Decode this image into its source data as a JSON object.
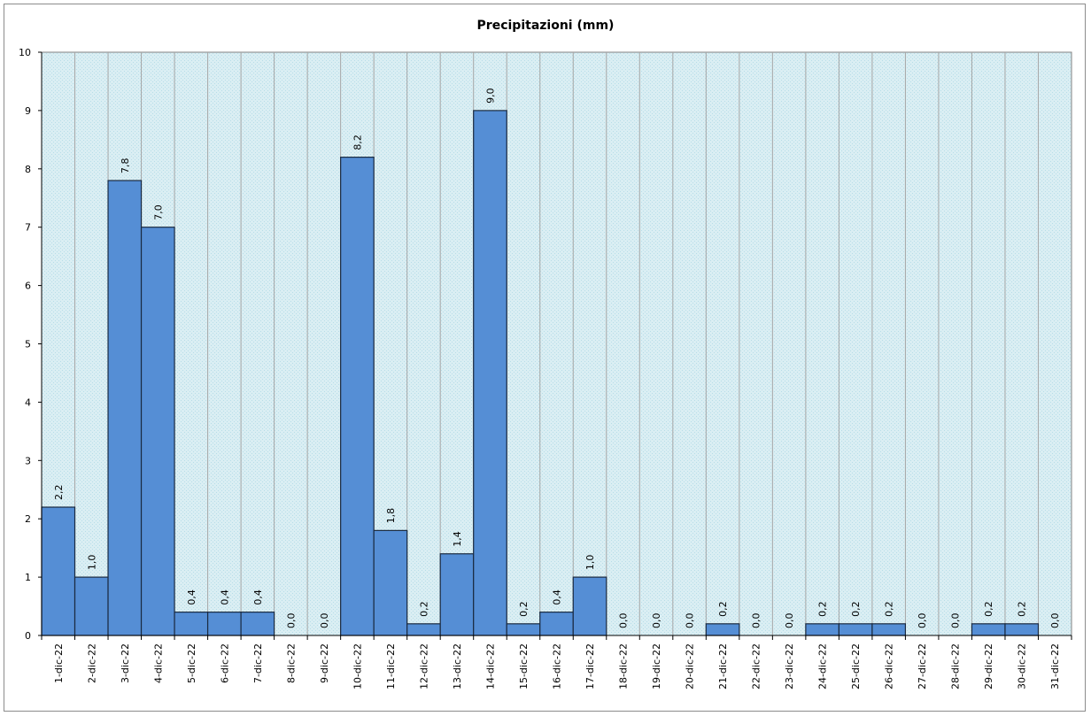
{
  "chart_data": {
    "type": "bar",
    "title": "Precipitazioni  (mm)",
    "xlabel": "",
    "ylabel": "",
    "ylim": [
      0,
      10
    ],
    "yticks": [
      "0",
      "1",
      "2",
      "3",
      "4",
      "5",
      "6",
      "7",
      "8",
      "9",
      "10"
    ],
    "grid": true,
    "legend": "none",
    "categories": [
      "1-dic-22",
      "2-dic-22",
      "3-dic-22",
      "4-dic-22",
      "5-dic-22",
      "6-dic-22",
      "7-dic-22",
      "8-dic-22",
      "9-dic-22",
      "10-dic-22",
      "11-dic-22",
      "12-dic-22",
      "13-dic-22",
      "14-dic-22",
      "15-dic-22",
      "16-dic-22",
      "17-dic-22",
      "18-dic-22",
      "19-dic-22",
      "20-dic-22",
      "21-dic-22",
      "22-dic-22",
      "23-dic-22",
      "24-dic-22",
      "25-dic-22",
      "26-dic-22",
      "27-dic-22",
      "28-dic-22",
      "29-dic-22",
      "30-dic-22",
      "31-dic-22"
    ],
    "values": [
      2.2,
      1.0,
      7.8,
      7.0,
      0.4,
      0.4,
      0.4,
      0.0,
      0.0,
      8.2,
      1.8,
      0.2,
      1.4,
      9.0,
      0.2,
      0.4,
      1.0,
      0.0,
      0.0,
      0.0,
      0.2,
      0.0,
      0.0,
      0.2,
      0.2,
      0.2,
      0.0,
      0.0,
      0.2,
      0.2,
      0.0
    ],
    "data_labels": [
      "2,2",
      "1,0",
      "7,8",
      "7,0",
      "0,4",
      "0,4",
      "0,4",
      "0,0",
      "0,0",
      "8,2",
      "1,8",
      "0,2",
      "1,4",
      "9,0",
      "0,2",
      "0,4",
      "1,0",
      "0,0",
      "0,0",
      "0,0",
      "0,2",
      "0,0",
      "0,0",
      "0,2",
      "0,2",
      "0,2",
      "0,0",
      "0,0",
      "0,2",
      "0,2",
      "0,0"
    ],
    "colors": {
      "bar": "#558ed5",
      "bar_stroke": "#1a2a40",
      "plot_bg": "#daeef3",
      "grid": "#a6a6a6"
    }
  }
}
